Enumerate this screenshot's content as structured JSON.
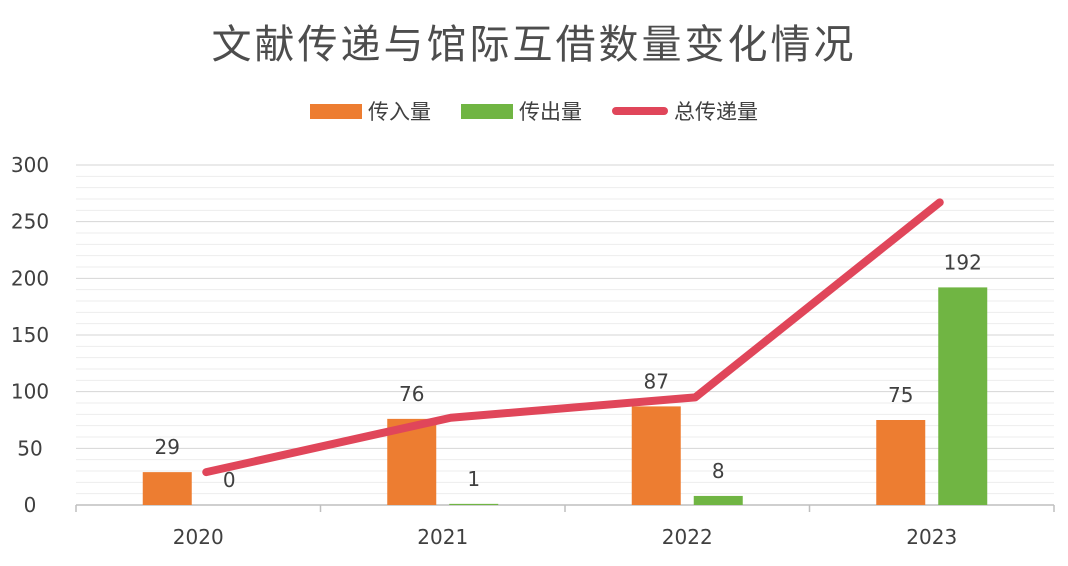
{
  "chart_data": {
    "type": "bar",
    "title": "文献传递与馆际互借数量变化情况",
    "categories": [
      "2020",
      "2021",
      "2022",
      "2023"
    ],
    "series": [
      {
        "name": "传入量",
        "type": "bar",
        "color": "#ed7d31",
        "values": [
          29,
          76,
          87,
          75
        ]
      },
      {
        "name": "传出量",
        "type": "bar",
        "color": "#70b543",
        "values": [
          0,
          1,
          8,
          192
        ]
      },
      {
        "name": "总传递量",
        "type": "line",
        "color": "#e0465a",
        "values": [
          29,
          77,
          95,
          267
        ]
      }
    ],
    "y_ticks": [
      "0",
      "50",
      "100",
      "150",
      "200",
      "250",
      "300"
    ],
    "ylim": [
      0,
      300
    ],
    "legend_position": "top-center",
    "grid": true,
    "data_labels": {
      "传入量": [
        "29",
        "76",
        "87",
        "75"
      ],
      "传出量": [
        "0",
        "1",
        "8",
        "192"
      ]
    }
  }
}
